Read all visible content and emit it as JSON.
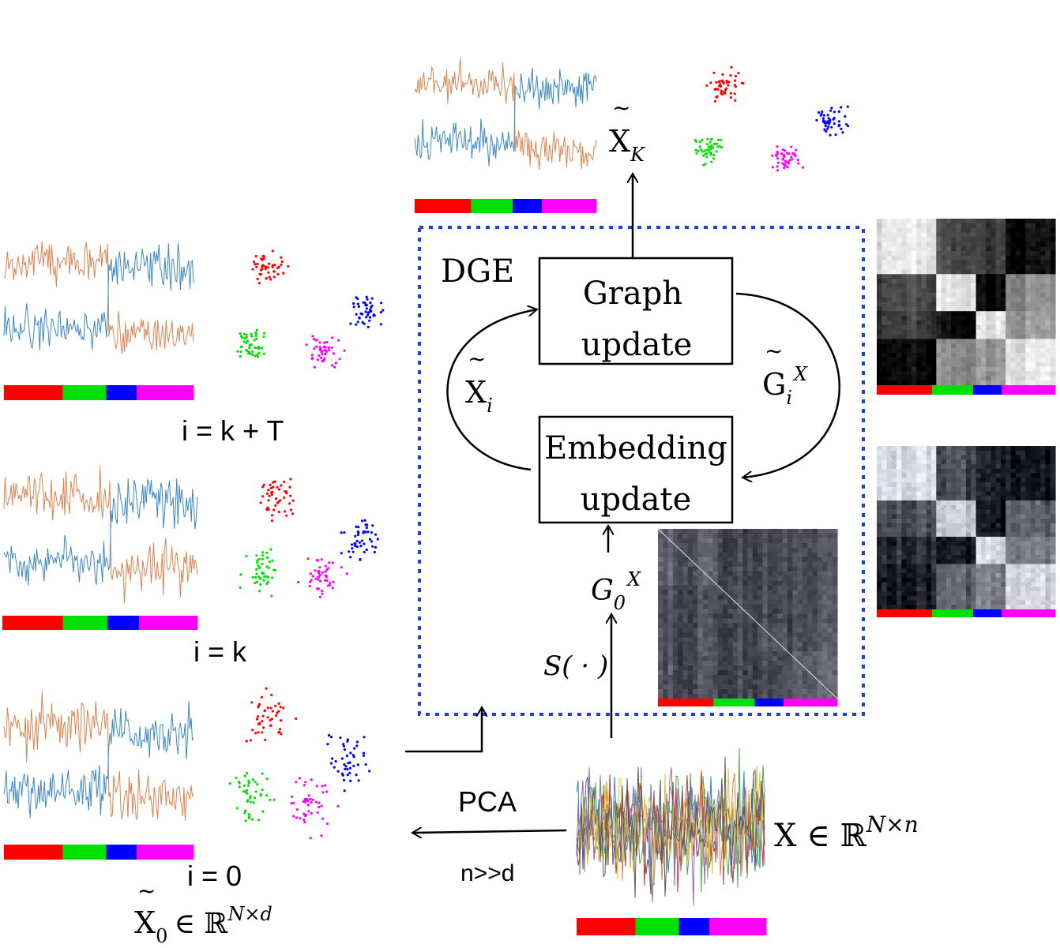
{
  "colors": {
    "class_red": "#ff0000",
    "class_green": "#00e000",
    "class_blue": "#0000ff",
    "class_magenta": "#ff00ff",
    "series_orange": "#d9834f",
    "series_blue": "#3a87c1",
    "dge_border": "#1f3fd6"
  },
  "class_proportions": [
    0.31,
    0.23,
    0.16,
    0.3
  ],
  "dge": {
    "title": "DGE",
    "graph_update": [
      "Graph",
      "update"
    ],
    "embedding_update": [
      "Embedding",
      "update"
    ],
    "loop_left_label": {
      "base": "X",
      "tilde": "~",
      "sub": "i"
    },
    "loop_right_label": {
      "base": "G",
      "tilde": "~",
      "sub": "i",
      "sup": "X"
    },
    "g0_label": {
      "base": "G",
      "sub": "0",
      "sup": "X"
    },
    "similarity_label": "S( · )"
  },
  "output_label": {
    "base": "X",
    "tilde": "~",
    "sub": "K"
  },
  "iterations": [
    "i = k + T",
    "i = k",
    "i = 0"
  ],
  "x0_label": {
    "base": "X",
    "tilde": "~",
    "sub": "0",
    "rest": "∈ ℝ",
    "sup": "N×d"
  },
  "input_label": {
    "base": "X ∈ ℝ",
    "sup": "N×n"
  },
  "pca": {
    "label": "PCA",
    "note": "n>>d"
  }
}
